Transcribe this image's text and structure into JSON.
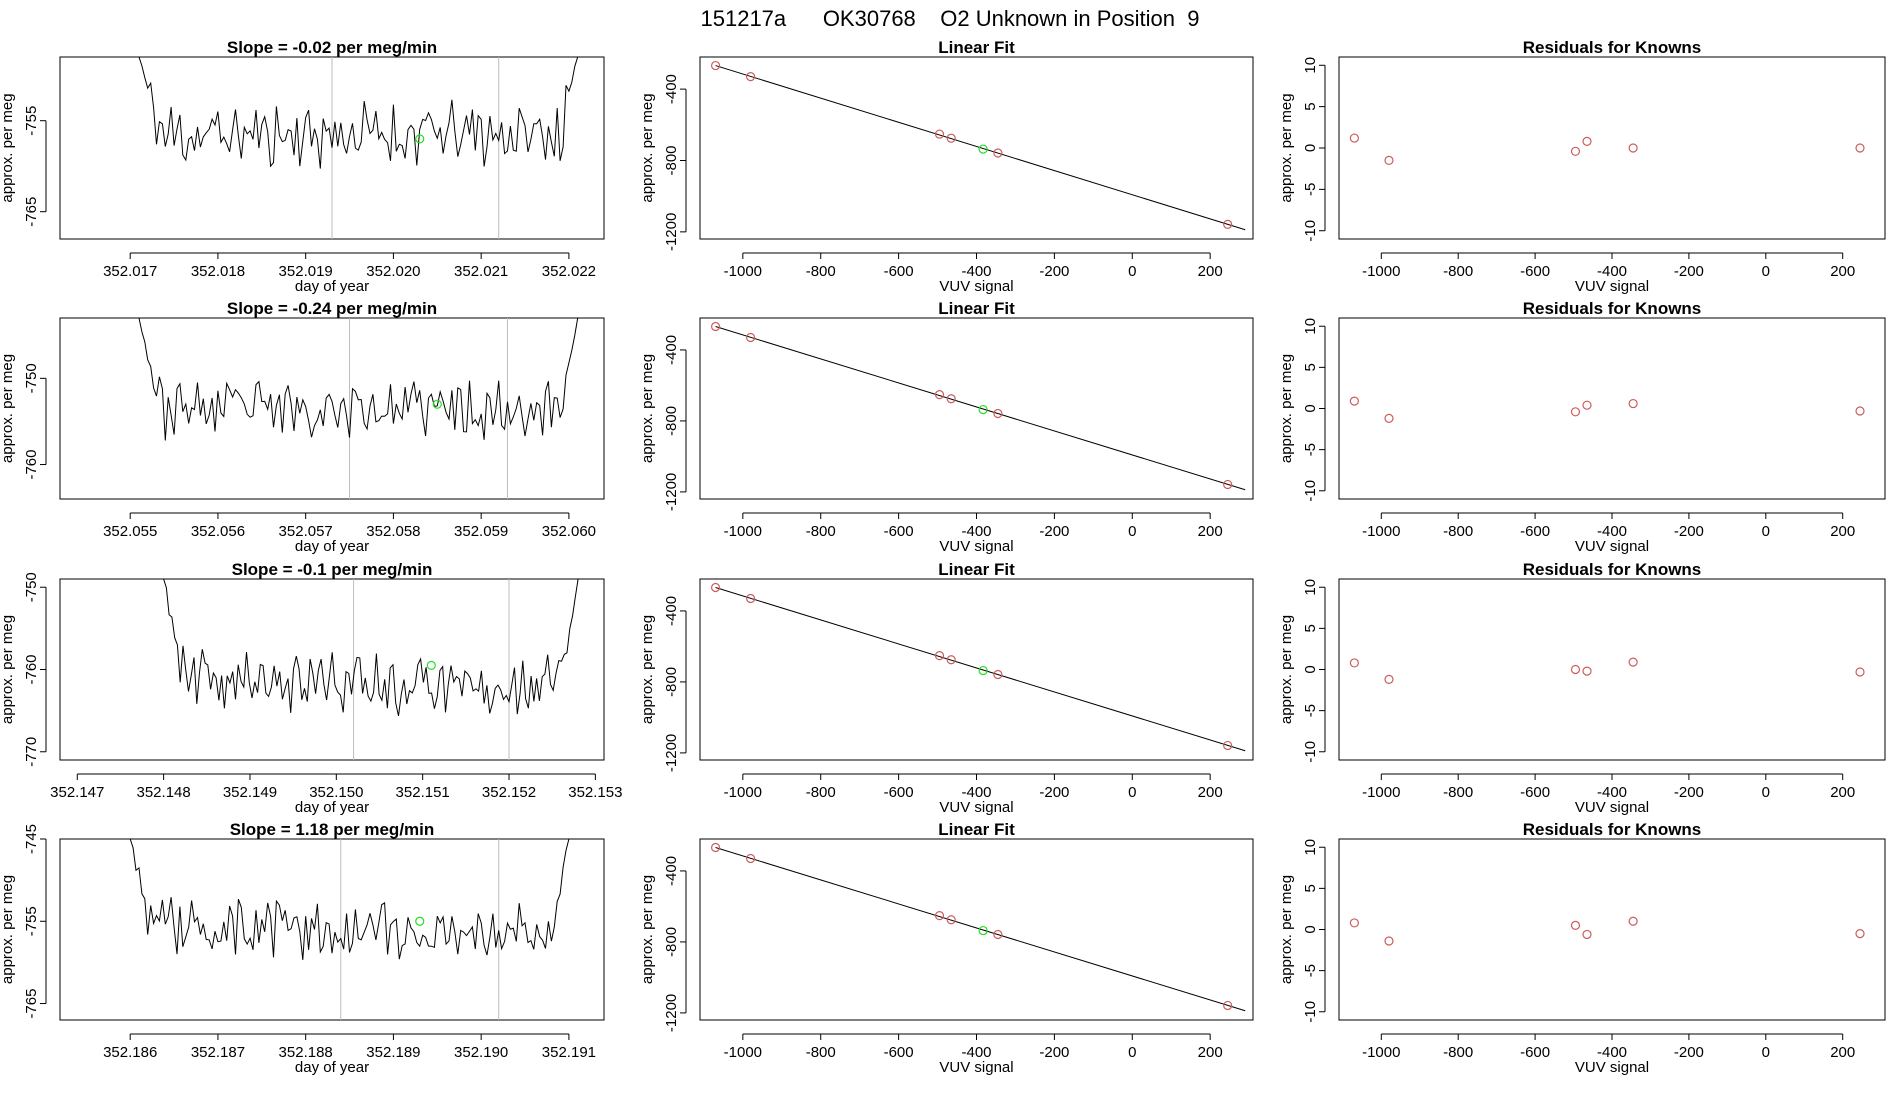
{
  "title": "151217a      OK30768    O2 Unknown in Position  9",
  "colors": {
    "known": "#cd5c5c",
    "unknown": "#22dd22",
    "vline": "#bdbdbd",
    "trace": "#000000"
  },
  "chart_data": [
    {
      "row": 1,
      "time_panel": {
        "type": "line",
        "title": "Slope =  -0.02  per meg/min",
        "xlabel": "day of year",
        "ylabel": "approx. per meg",
        "xlim": [
          352.0162,
          352.0224
        ],
        "ylim": [
          -768,
          -748
        ],
        "xticks": [
          352.017,
          352.018,
          352.019,
          352.02,
          352.021,
          352.022
        ],
        "xtick_labels": [
          "352.017",
          "352.018",
          "352.019",
          "352.020",
          "352.021",
          "352.022"
        ],
        "yticks": [
          -755,
          -765
        ],
        "vlines": [
          352.0193,
          352.0212
        ],
        "x_start": 352.0171,
        "x_end": 352.0221,
        "base": -756.5,
        "noise": 3.0,
        "seed": 11,
        "edge_start": -748,
        "edge_end": -748,
        "unknown_point": {
          "x": 352.0203,
          "y": -757
        }
      },
      "fit_panel": {
        "type": "scatter",
        "title": "Linear Fit",
        "xlabel": "VUV signal",
        "ylabel": "approx. per meg",
        "xlim": [
          -1110,
          310
        ],
        "ylim": [
          -1240,
          -220
        ],
        "xticks": [
          -1000,
          -800,
          -600,
          -400,
          -200,
          0,
          200
        ],
        "yticks": [
          -400,
          -800,
          -1200
        ],
        "line": {
          "x1": -1070,
          "y1": -268,
          "x2": 290,
          "y2": -1188
        },
        "known_points": [
          {
            "x": -1070,
            "y": -268
          },
          {
            "x": -980,
            "y": -330
          },
          {
            "x": -495,
            "y": -652
          },
          {
            "x": -465,
            "y": -675
          },
          {
            "x": -345,
            "y": -758
          },
          {
            "x": 245,
            "y": -1158
          }
        ],
        "unknown_point": {
          "x": -383,
          "y": -736
        }
      },
      "residual_panel": {
        "type": "scatter",
        "title": "Residuals for Knowns",
        "xlabel": "VUV signal",
        "ylabel": "approx. per meg",
        "xlim": [
          -1110,
          310
        ],
        "ylim": [
          -11,
          11
        ],
        "xticks": [
          -1000,
          -800,
          -600,
          -400,
          -200,
          0,
          200
        ],
        "yticks": [
          10,
          5,
          0,
          -5,
          -10
        ],
        "points": [
          {
            "x": -1070,
            "y": 1.2
          },
          {
            "x": -980,
            "y": -1.5
          },
          {
            "x": -495,
            "y": -0.4
          },
          {
            "x": -465,
            "y": 0.8
          },
          {
            "x": -345,
            "y": 0.0
          },
          {
            "x": 245,
            "y": 0.0
          }
        ]
      }
    },
    {
      "row": 2,
      "time_panel": {
        "type": "line",
        "title": "Slope =  -0.24  per meg/min",
        "xlabel": "day of year",
        "ylabel": "approx. per meg",
        "xlim": [
          352.0542,
          352.0604
        ],
        "ylim": [
          -764,
          -743
        ],
        "xticks": [
          352.055,
          352.056,
          352.057,
          352.058,
          352.059,
          352.06
        ],
        "xtick_labels": [
          "352.055",
          "352.056",
          "352.057",
          "352.058",
          "352.059",
          "352.060"
        ],
        "yticks": [
          -750,
          -760
        ],
        "vlines": [
          352.0575,
          352.0593
        ],
        "x_start": 352.0551,
        "x_end": 352.0601,
        "base": -753.5,
        "noise": 2.8,
        "seed": 23,
        "edge_start": -743,
        "edge_end": -743,
        "unknown_point": {
          "x": 352.0585,
          "y": -753
        }
      },
      "fit_panel": {
        "type": "scatter",
        "title": "Linear Fit",
        "xlabel": "VUV signal",
        "ylabel": "approx. per meg",
        "xlim": [
          -1110,
          310
        ],
        "ylim": [
          -1240,
          -220
        ],
        "xticks": [
          -1000,
          -800,
          -600,
          -400,
          -200,
          0,
          200
        ],
        "yticks": [
          -400,
          -800,
          -1200
        ],
        "line": {
          "x1": -1070,
          "y1": -268,
          "x2": 290,
          "y2": -1188
        },
        "known_points": [
          {
            "x": -1070,
            "y": -268
          },
          {
            "x": -980,
            "y": -330
          },
          {
            "x": -495,
            "y": -652
          },
          {
            "x": -465,
            "y": -675
          },
          {
            "x": -345,
            "y": -758
          },
          {
            "x": 245,
            "y": -1158
          }
        ],
        "unknown_point": {
          "x": -383,
          "y": -736
        }
      },
      "residual_panel": {
        "type": "scatter",
        "title": "Residuals for Knowns",
        "xlabel": "VUV signal",
        "ylabel": "approx. per meg",
        "xlim": [
          -1110,
          310
        ],
        "ylim": [
          -11,
          11
        ],
        "xticks": [
          -1000,
          -800,
          -600,
          -400,
          -200,
          0,
          200
        ],
        "yticks": [
          10,
          5,
          0,
          -5,
          -10
        ],
        "points": [
          {
            "x": -1070,
            "y": 0.9
          },
          {
            "x": -980,
            "y": -1.2
          },
          {
            "x": -495,
            "y": -0.4
          },
          {
            "x": -465,
            "y": 0.4
          },
          {
            "x": -345,
            "y": 0.6
          },
          {
            "x": 245,
            "y": -0.3
          }
        ]
      }
    },
    {
      "row": 3,
      "time_panel": {
        "type": "line",
        "title": "Slope =  -0.1  per meg/min",
        "xlabel": "day of year",
        "ylabel": "approx. per meg",
        "xlim": [
          352.1468,
          352.1531
        ],
        "ylim": [
          -771,
          -749
        ],
        "xticks": [
          352.147,
          352.148,
          352.149,
          352.15,
          352.151,
          352.152,
          352.153
        ],
        "xtick_labels": [
          "352.147",
          "352.148",
          "352.149",
          "352.150",
          "352.151",
          "352.152",
          "352.153"
        ],
        "yticks": [
          -750,
          -760,
          -770
        ],
        "vlines": [
          352.1502,
          352.152
        ],
        "x_start": 352.148,
        "x_end": 352.1528,
        "base": -761.5,
        "noise": 3.3,
        "seed": 37,
        "edge_start": -749,
        "edge_end": -749,
        "unknown_point": {
          "x": 352.1511,
          "y": -759.5
        }
      },
      "fit_panel": {
        "type": "scatter",
        "title": "Linear Fit",
        "xlabel": "VUV signal",
        "ylabel": "approx. per meg",
        "xlim": [
          -1110,
          310
        ],
        "ylim": [
          -1240,
          -220
        ],
        "xticks": [
          -1000,
          -800,
          -600,
          -400,
          -200,
          0,
          200
        ],
        "yticks": [
          -400,
          -800,
          -1200
        ],
        "line": {
          "x1": -1070,
          "y1": -268,
          "x2": 290,
          "y2": -1188
        },
        "known_points": [
          {
            "x": -1070,
            "y": -268
          },
          {
            "x": -980,
            "y": -330
          },
          {
            "x": -495,
            "y": -652
          },
          {
            "x": -465,
            "y": -675
          },
          {
            "x": -345,
            "y": -758
          },
          {
            "x": 245,
            "y": -1158
          }
        ],
        "unknown_point": {
          "x": -383,
          "y": -736
        }
      },
      "residual_panel": {
        "type": "scatter",
        "title": "Residuals for Knowns",
        "xlabel": "VUV signal",
        "ylabel": "approx. per meg",
        "xlim": [
          -1110,
          310
        ],
        "ylim": [
          -11,
          11
        ],
        "xticks": [
          -1000,
          -800,
          -600,
          -400,
          -200,
          0,
          200
        ],
        "yticks": [
          10,
          5,
          0,
          -5,
          -10
        ],
        "points": [
          {
            "x": -1070,
            "y": 0.8
          },
          {
            "x": -980,
            "y": -1.2
          },
          {
            "x": -495,
            "y": 0.0
          },
          {
            "x": -465,
            "y": -0.2
          },
          {
            "x": -345,
            "y": 0.9
          },
          {
            "x": 245,
            "y": -0.3
          }
        ]
      }
    },
    {
      "row": 4,
      "time_panel": {
        "type": "line",
        "title": "Slope =  1.18  per meg/min",
        "xlabel": "day of year",
        "ylabel": "approx. per meg",
        "xlim": [
          352.1852,
          352.1914
        ],
        "ylim": [
          -767,
          -745
        ],
        "xticks": [
          352.186,
          352.187,
          352.188,
          352.189,
          352.19,
          352.191
        ],
        "xtick_labels": [
          "352.186",
          "352.187",
          "352.188",
          "352.189",
          "352.190",
          "352.191"
        ],
        "yticks": [
          -745,
          -755,
          -765
        ],
        "vlines": [
          352.1884,
          352.1902
        ],
        "x_start": 352.186,
        "x_end": 352.191,
        "base": -756.0,
        "noise": 3.0,
        "seed": 53,
        "edge_start": -745,
        "edge_end": -745,
        "unknown_point": {
          "x": 352.1893,
          "y": -755
        }
      },
      "fit_panel": {
        "type": "scatter",
        "title": "Linear Fit",
        "xlabel": "VUV signal",
        "ylabel": "approx. per meg",
        "xlim": [
          -1110,
          310
        ],
        "ylim": [
          -1240,
          -220
        ],
        "xticks": [
          -1000,
          -800,
          -600,
          -400,
          -200,
          0,
          200
        ],
        "yticks": [
          -400,
          -800,
          -1200
        ],
        "line": {
          "x1": -1070,
          "y1": -268,
          "x2": 290,
          "y2": -1188
        },
        "known_points": [
          {
            "x": -1070,
            "y": -268
          },
          {
            "x": -980,
            "y": -330
          },
          {
            "x": -495,
            "y": -652
          },
          {
            "x": -465,
            "y": -675
          },
          {
            "x": -345,
            "y": -758
          },
          {
            "x": 245,
            "y": -1158
          }
        ],
        "unknown_point": {
          "x": -383,
          "y": -736
        }
      },
      "residual_panel": {
        "type": "scatter",
        "title": "Residuals for Knowns",
        "xlabel": "VUV signal",
        "ylabel": "approx. per meg",
        "xlim": [
          -1110,
          310
        ],
        "ylim": [
          -11,
          11
        ],
        "xticks": [
          -1000,
          -800,
          -600,
          -400,
          -200,
          0,
          200
        ],
        "yticks": [
          10,
          5,
          0,
          -5,
          -10
        ],
        "points": [
          {
            "x": -1070,
            "y": 0.8
          },
          {
            "x": -980,
            "y": -1.4
          },
          {
            "x": -495,
            "y": 0.5
          },
          {
            "x": -465,
            "y": -0.6
          },
          {
            "x": -345,
            "y": 1.0
          },
          {
            "x": 245,
            "y": -0.5
          }
        ]
      }
    }
  ]
}
